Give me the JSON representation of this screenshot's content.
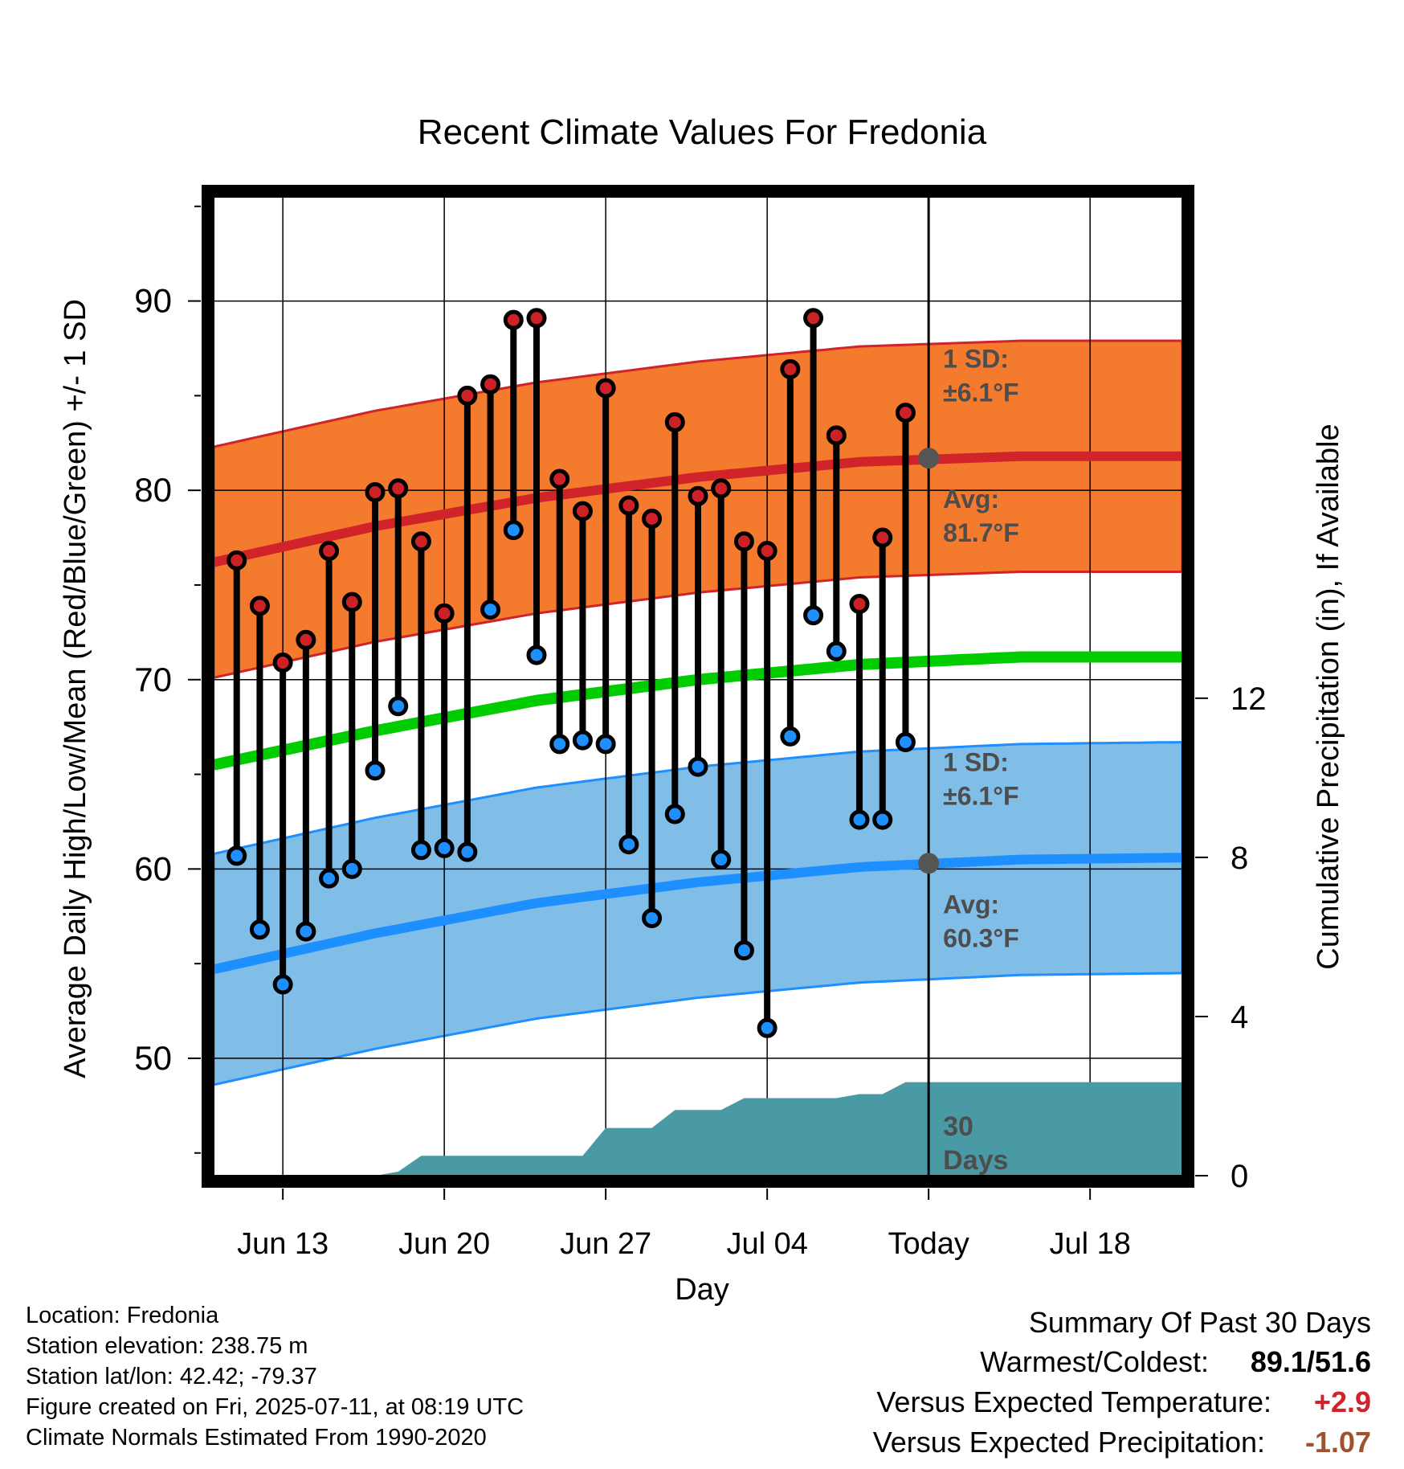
{
  "chart_data": {
    "type": "line",
    "title": "Recent Climate Values For Fredonia",
    "xlabel": "Day",
    "ylabel_left": "Average Daily High/Low/Mean (Red/Blue/Green) +/- 1 SD",
    "ylabel_right": "Cumulative Precipitation (in), If Available",
    "x_ticks": [
      "Jun 13",
      "Jun 20",
      "Jun 27",
      "Jul 04",
      "Today",
      "Jul 18"
    ],
    "x_tick_dates": [
      "2025-06-13",
      "2025-06-20",
      "2025-06-27",
      "2025-07-04",
      "2025-07-11",
      "2025-07-18"
    ],
    "xlim": [
      "2025-06-10",
      "2025-07-22"
    ],
    "today": "2025-07-11",
    "y_ticks_left": [
      50,
      60,
      70,
      80,
      90
    ],
    "ylim_left": [
      43.8,
      95.5
    ],
    "y_ticks_right": [
      0,
      4,
      8,
      12
    ],
    "ylim_right": [
      0,
      24.6
    ],
    "grid": true,
    "daily": [
      {
        "date": "2025-06-11",
        "high": 76.3,
        "low": 60.7
      },
      {
        "date": "2025-06-12",
        "high": 73.9,
        "low": 56.8
      },
      {
        "date": "2025-06-13",
        "high": 70.9,
        "low": 53.9
      },
      {
        "date": "2025-06-14",
        "high": 72.1,
        "low": 56.7
      },
      {
        "date": "2025-06-15",
        "high": 76.8,
        "low": 59.5
      },
      {
        "date": "2025-06-16",
        "high": 74.1,
        "low": 60.0
      },
      {
        "date": "2025-06-17",
        "high": 79.9,
        "low": 65.2
      },
      {
        "date": "2025-06-18",
        "high": 80.1,
        "low": 68.6
      },
      {
        "date": "2025-06-19",
        "high": 77.3,
        "low": 61.0
      },
      {
        "date": "2025-06-20",
        "high": 73.5,
        "low": 61.1
      },
      {
        "date": "2025-06-21",
        "high": 85.0,
        "low": 60.9
      },
      {
        "date": "2025-06-22",
        "high": 85.6,
        "low": 73.7
      },
      {
        "date": "2025-06-23",
        "high": 89.0,
        "low": 77.9
      },
      {
        "date": "2025-06-24",
        "high": 89.1,
        "low": 71.3
      },
      {
        "date": "2025-06-25",
        "high": 80.6,
        "low": 66.6
      },
      {
        "date": "2025-06-26",
        "high": 78.9,
        "low": 66.8
      },
      {
        "date": "2025-06-27",
        "high": 85.4,
        "low": 66.6
      },
      {
        "date": "2025-06-28",
        "high": 79.2,
        "low": 61.3
      },
      {
        "date": "2025-06-29",
        "high": 78.5,
        "low": 57.4
      },
      {
        "date": "2025-06-30",
        "high": 83.6,
        "low": 62.9
      },
      {
        "date": "2025-07-01",
        "high": 79.7,
        "low": 65.4
      },
      {
        "date": "2025-07-02",
        "high": 80.1,
        "low": 60.5
      },
      {
        "date": "2025-07-03",
        "high": 77.3,
        "low": 55.7
      },
      {
        "date": "2025-07-04",
        "high": 76.8,
        "low": 51.6
      },
      {
        "date": "2025-07-05",
        "high": 86.4,
        "low": 67.0
      },
      {
        "date": "2025-07-06",
        "high": 89.1,
        "low": 73.4
      },
      {
        "date": "2025-07-07",
        "high": 82.9,
        "low": 71.5
      },
      {
        "date": "2025-07-08",
        "high": 74.0,
        "low": 62.6
      },
      {
        "date": "2025-07-09",
        "high": 77.5,
        "low": 62.6
      },
      {
        "date": "2025-07-10",
        "high": 84.1,
        "low": 66.7
      }
    ],
    "normals": [
      {
        "date": "2025-06-10",
        "avg_high": 76.2,
        "avg_low": 54.7,
        "avg_mean": 65.5
      },
      {
        "date": "2025-06-17",
        "avg_high": 78.1,
        "avg_low": 56.6,
        "avg_mean": 67.3
      },
      {
        "date": "2025-06-24",
        "avg_high": 79.6,
        "avg_low": 58.2,
        "avg_mean": 68.9
      },
      {
        "date": "2025-07-01",
        "avg_high": 80.7,
        "avg_low": 59.3,
        "avg_mean": 70.0
      },
      {
        "date": "2025-07-08",
        "avg_high": 81.5,
        "avg_low": 60.1,
        "avg_mean": 70.8
      },
      {
        "date": "2025-07-15",
        "avg_high": 81.8,
        "avg_low": 60.5,
        "avg_mean": 71.2
      },
      {
        "date": "2025-07-22",
        "avg_high": 81.8,
        "avg_low": 60.6,
        "avg_mean": 71.2
      }
    ],
    "sd_high": 6.1,
    "sd_low": 6.1,
    "precip_cumulative": [
      {
        "date": "2025-06-10",
        "value": 0.0
      },
      {
        "date": "2025-06-17",
        "value": 0.0
      },
      {
        "date": "2025-06-18",
        "value": 0.1
      },
      {
        "date": "2025-06-19",
        "value": 0.5
      },
      {
        "date": "2025-06-26",
        "value": 0.5
      },
      {
        "date": "2025-06-27",
        "value": 1.2
      },
      {
        "date": "2025-06-29",
        "value": 1.2
      },
      {
        "date": "2025-06-30",
        "value": 1.65
      },
      {
        "date": "2025-07-02",
        "value": 1.65
      },
      {
        "date": "2025-07-03",
        "value": 1.95
      },
      {
        "date": "2025-07-07",
        "value": 1.95
      },
      {
        "date": "2025-07-08",
        "value": 2.05
      },
      {
        "date": "2025-07-09",
        "value": 2.05
      },
      {
        "date": "2025-07-10",
        "value": 2.35
      },
      {
        "date": "2025-07-22",
        "value": 2.35
      }
    ],
    "annotations": {
      "high_sd": "1 SD:\n±6.1°F",
      "high_avg": "Avg:\n81.7°F",
      "low_sd": "1 SD:\n±6.1°F",
      "low_avg": "Avg:\n60.3°F",
      "today_high_avg": 81.7,
      "today_low_avg": 60.3,
      "period": "30\nDays"
    },
    "colors": {
      "high_band": "#f47a2e",
      "high_line": "#d0232a",
      "high_point": "#cc2127",
      "low_band": "#80bde7",
      "low_line": "#1e8fff",
      "low_point": "#1e8fff",
      "mean_line": "#00cc00",
      "precip": "#4a9aa5",
      "annotation": "#4d4d4d"
    }
  },
  "footer": {
    "location": "Location: Fredonia",
    "elevation": "Station elevation: 238.75 m",
    "latlon": "Station lat/lon: 42.42; -79.37",
    "created": "Figure created on Fri, 2025-07-11, at 08:19 UTC",
    "normals": "Climate Normals Estimated From 1990-2020"
  },
  "summary": {
    "title": "Summary Of Past 30 Days",
    "warmest_coldest_label": "Warmest/Coldest:",
    "warmest": "89.1",
    "sep": "/",
    "coldest": "51.6",
    "temp_label": "Versus Expected Temperature:",
    "temp_value": "+2.9",
    "temp_color": "#d0232a",
    "precip_label": "Versus Expected Precipitation:",
    "precip_value": "-1.07",
    "precip_color": "#a0522d"
  }
}
